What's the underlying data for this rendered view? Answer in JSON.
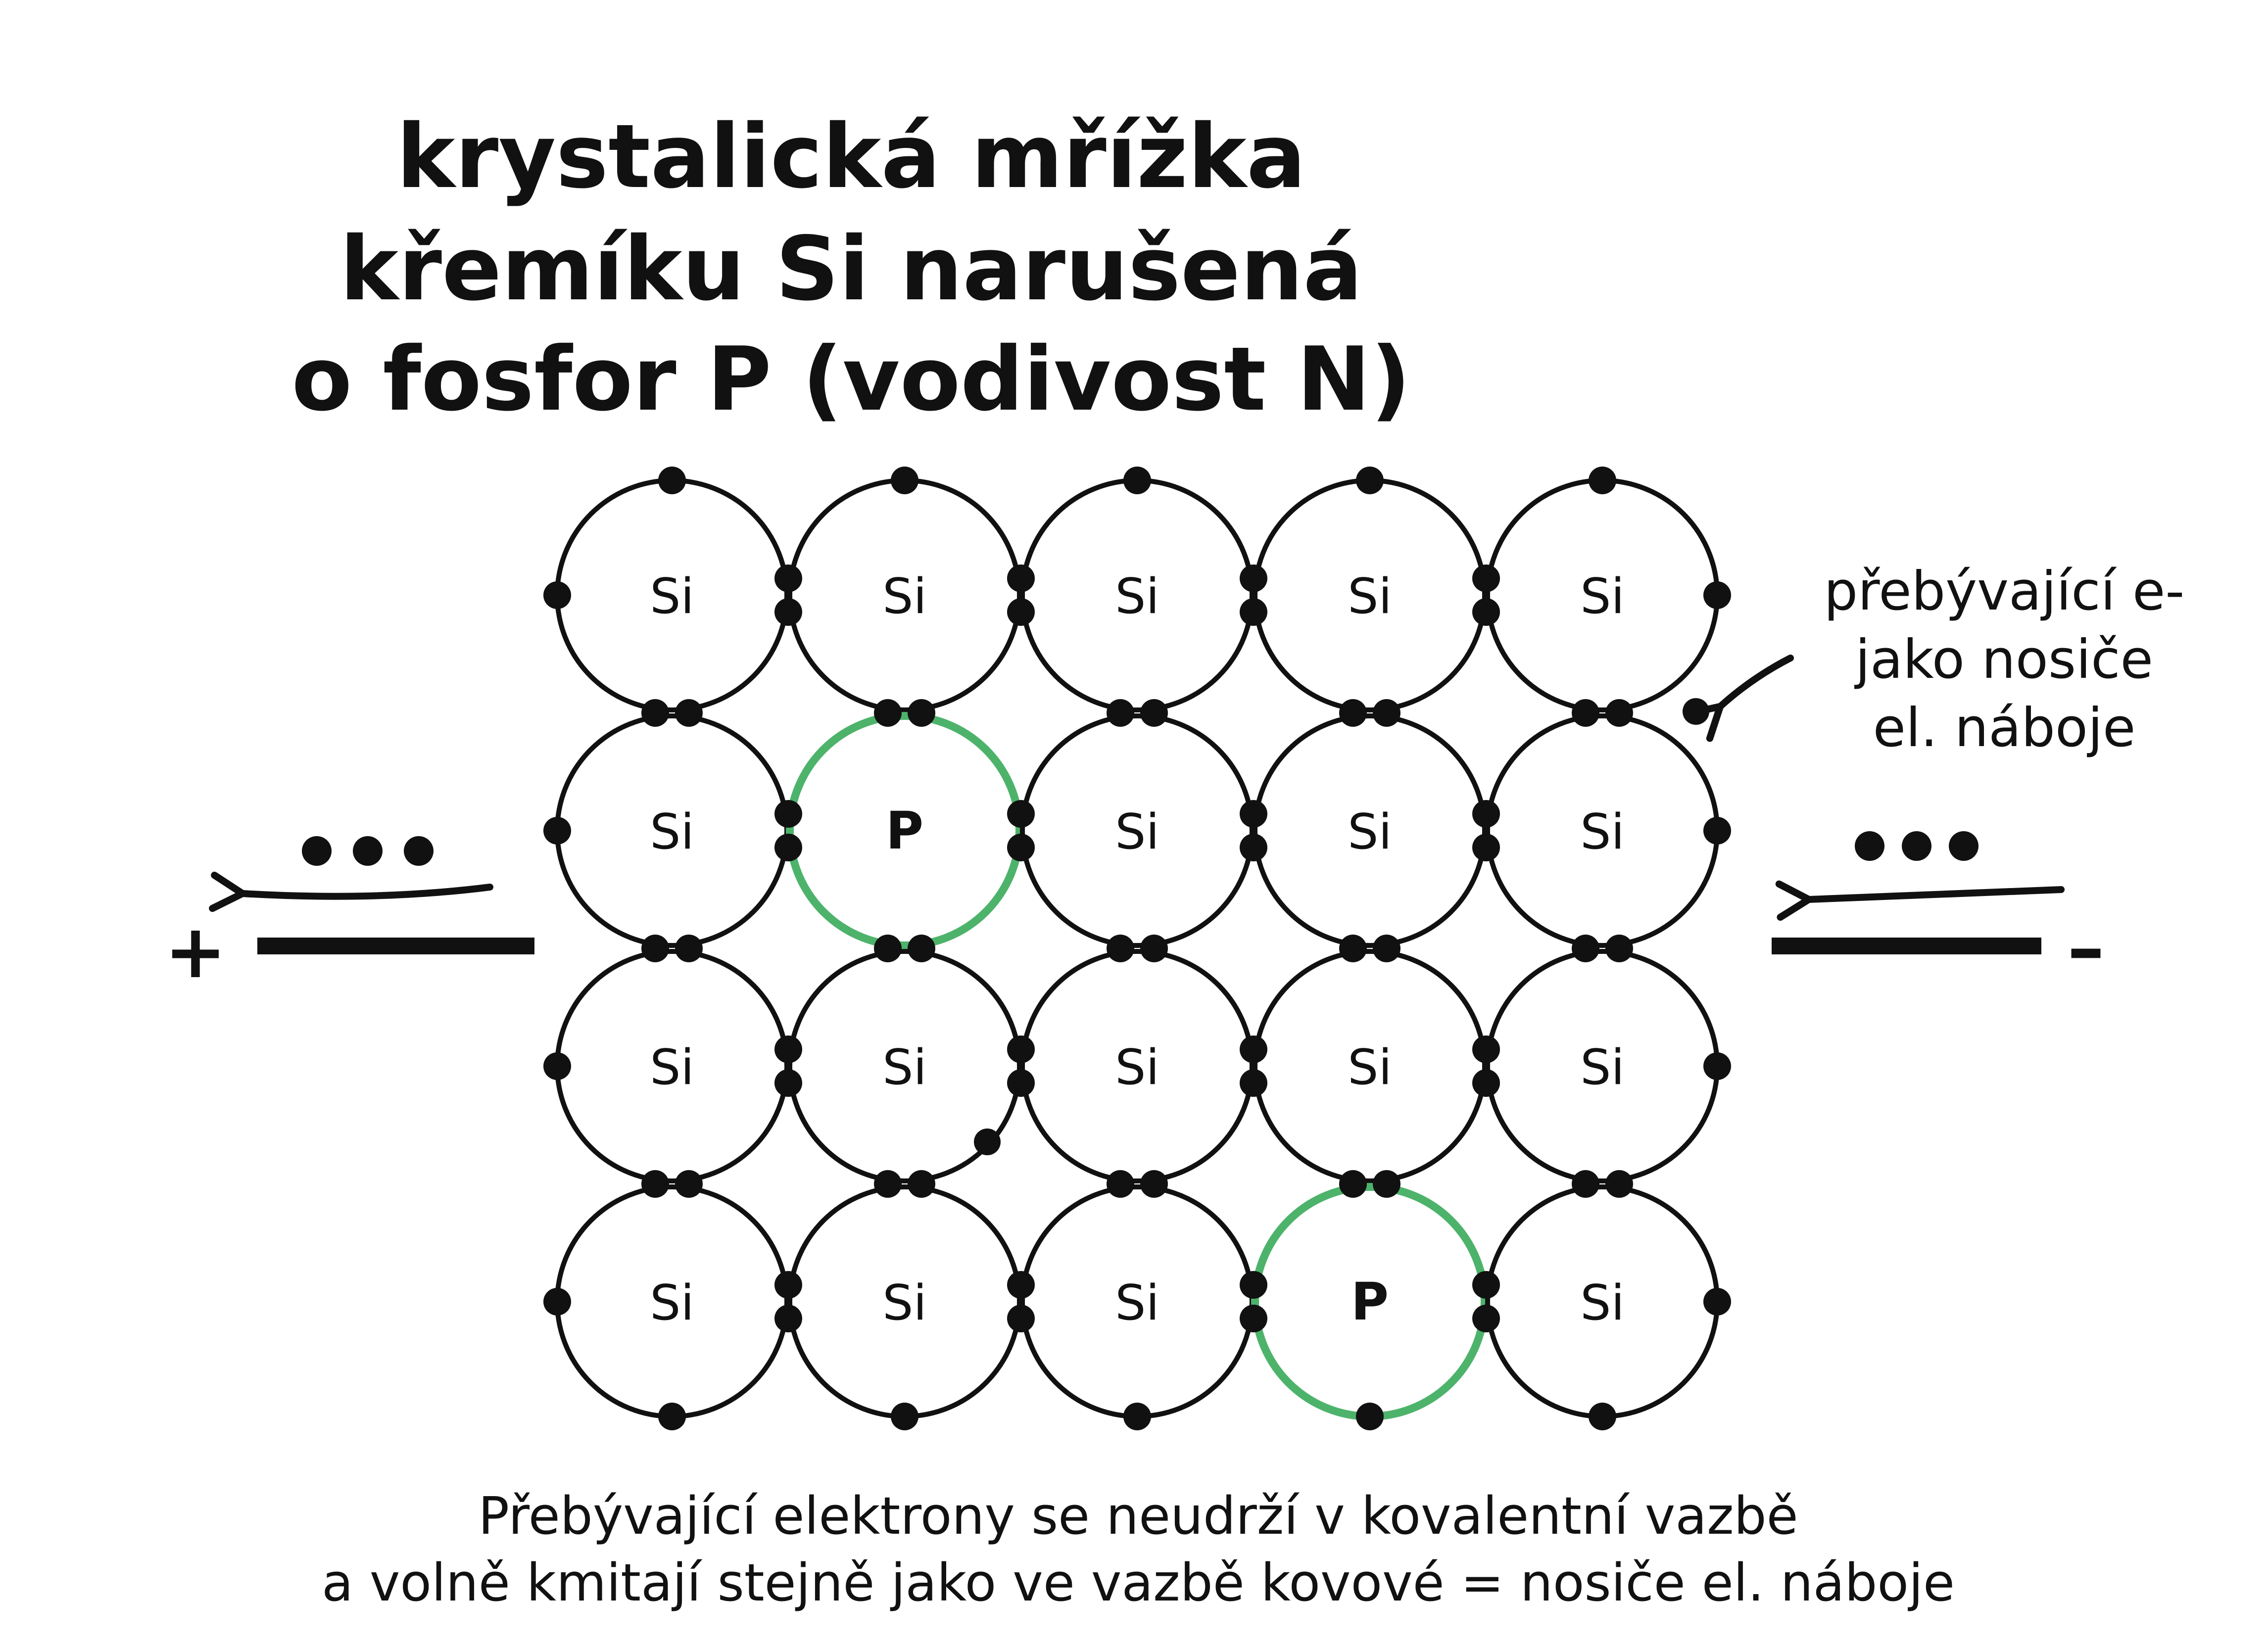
{
  "title": {
    "line1": "krystalická mřížka",
    "line2": "křemíku Si narušená",
    "line3": "o fosfor P (vodivost N)"
  },
  "lattice": {
    "rows": [
      [
        "Si",
        "Si",
        "Si",
        "Si",
        "Si"
      ],
      [
        "Si",
        "P",
        "Si",
        "Si",
        "Si"
      ],
      [
        "Si",
        "Si",
        "Si",
        "Si",
        "Si"
      ],
      [
        "Si",
        "Si",
        "Si",
        "P",
        "Si"
      ]
    ]
  },
  "annotation": {
    "line1": "přebývající e-",
    "line2": "jako nosiče",
    "line3": "el. náboje"
  },
  "electrodes": {
    "positive": "+",
    "negative": "–"
  },
  "caption": {
    "line1": "Přebývající elektrony se neudrží v kovalentní vazbě",
    "line2": "a volně kmitají stejně jako ve vazbě kovové = nosiče el. náboje"
  },
  "colors": {
    "dopant": "#4db36b",
    "ink": "#111111"
  }
}
